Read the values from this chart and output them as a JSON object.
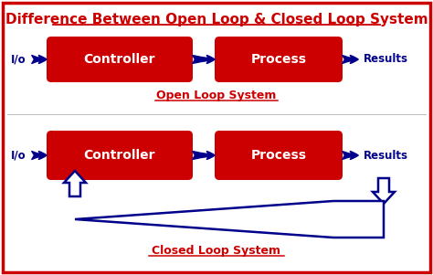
{
  "title": "Difference Between Open Loop & Closed Loop System",
  "title_color": "#CC0000",
  "title_fontsize": 11,
  "bg_color": "#FFFFFF",
  "border_color": "#CC0000",
  "box_color": "#CC0000",
  "arrow_color": "#00008B",
  "text_color_white": "#FFFFFF",
  "text_color_blue": "#00008B",
  "label_open": "Open Loop System",
  "label_closed": "Closed Loop System",
  "controller_label": "Controller",
  "process_label": "Process",
  "results_label": "Results",
  "io_label": "I/o"
}
